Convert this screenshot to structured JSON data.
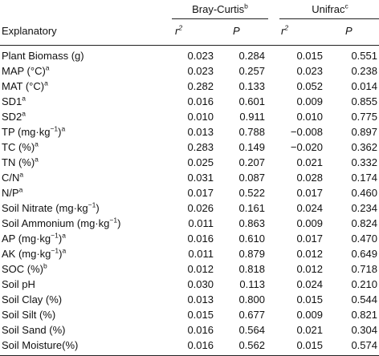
{
  "groups": [
    {
      "label": "Bray-Curtis",
      "note": "b"
    },
    {
      "label": "Unifrac",
      "note": "c"
    }
  ],
  "header": {
    "explanatory": "Explanatory",
    "r2_base": "r",
    "r2_sup": "2",
    "p": "P"
  },
  "rows": [
    {
      "name": "Plant Biomass (g)",
      "sup": "",
      "bc_r2": "0.023",
      "bc_p": "0.284",
      "uf_r2": "0.015",
      "uf_p": "0.551"
    },
    {
      "name": "MAP (°C)",
      "sup": "a",
      "bc_r2": "0.023",
      "bc_p": "0.257",
      "uf_r2": "0.023",
      "uf_p": "0.238"
    },
    {
      "name": "MAT (°C)",
      "sup": "a",
      "bc_r2": "0.282",
      "bc_p": "0.133",
      "uf_r2": "0.052",
      "uf_p": "0.014"
    },
    {
      "name": "SD1",
      "sup": "a",
      "bc_r2": "0.016",
      "bc_p": "0.601",
      "uf_r2": "0.009",
      "uf_p": "0.855"
    },
    {
      "name": "SD2",
      "sup": "a",
      "bc_r2": "0.010",
      "bc_p": "0.911",
      "uf_r2": "0.010",
      "uf_p": "0.775"
    },
    {
      "name": "TP (mg·kg",
      "unit_sup": "−1",
      "name_tail": ")",
      "sup": "a",
      "bc_r2": "0.013",
      "bc_p": "0.788",
      "uf_r2": "−0.008",
      "uf_p": "0.897"
    },
    {
      "name": "TC (%)",
      "sup": "a",
      "bc_r2": "0.283",
      "bc_p": "0.149",
      "uf_r2": "−0.020",
      "uf_p": "0.362"
    },
    {
      "name": "TN (%)",
      "sup": "a",
      "bc_r2": "0.025",
      "bc_p": "0.207",
      "uf_r2": "0.021",
      "uf_p": "0.332"
    },
    {
      "name": "C/N",
      "sup": "a",
      "bc_r2": "0.031",
      "bc_p": "0.087",
      "uf_r2": "0.028",
      "uf_p": "0.174"
    },
    {
      "name": "N/P",
      "sup": "a",
      "bc_r2": "0.017",
      "bc_p": "0.522",
      "uf_r2": "0.017",
      "uf_p": "0.460"
    },
    {
      "name": "Soil Nitrate (mg·kg",
      "unit_sup": "−1",
      "name_tail": ")",
      "sup": "",
      "bc_r2": "0.026",
      "bc_p": "0.161",
      "uf_r2": "0.024",
      "uf_p": "0.234"
    },
    {
      "name": "Soil Ammonium (mg·kg",
      "unit_sup": "−1",
      "name_tail": ")",
      "sup": "",
      "bc_r2": "0.011",
      "bc_p": "0.863",
      "uf_r2": "0.009",
      "uf_p": "0.824"
    },
    {
      "name": "AP (mg·kg",
      "unit_sup": "−1",
      "name_tail": ")",
      "sup": "a",
      "bc_r2": "0.016",
      "bc_p": "0.610",
      "uf_r2": "0.017",
      "uf_p": "0.470"
    },
    {
      "name": "AK (mg·kg",
      "unit_sup": "−1",
      "name_tail": ")",
      "sup": "a",
      "bc_r2": "0.011",
      "bc_p": "0.879",
      "uf_r2": "0.012",
      "uf_p": "0.649"
    },
    {
      "name": "SOC (%)",
      "sup": "b",
      "bc_r2": "0.012",
      "bc_p": "0.818",
      "uf_r2": "0.012",
      "uf_p": "0.718"
    },
    {
      "name": "Soil pH",
      "sup": "",
      "bc_r2": "0.030",
      "bc_p": "0.113",
      "uf_r2": "0.024",
      "uf_p": "0.210"
    },
    {
      "name": "Soil Clay (%)",
      "sup": "",
      "bc_r2": "0.013",
      "bc_p": "0.800",
      "uf_r2": "0.015",
      "uf_p": "0.544"
    },
    {
      "name": "Soil Silt (%)",
      "sup": "",
      "bc_r2": "0.015",
      "bc_p": "0.677",
      "uf_r2": "0.009",
      "uf_p": "0.821"
    },
    {
      "name": "Soil Sand (%)",
      "sup": "",
      "bc_r2": "0.016",
      "bc_p": "0.564",
      "uf_r2": "0.021",
      "uf_p": "0.304"
    },
    {
      "name": "Soil Moisture(%)",
      "sup": "",
      "bc_r2": "0.016",
      "bc_p": "0.562",
      "uf_r2": "0.015",
      "uf_p": "0.574"
    }
  ]
}
